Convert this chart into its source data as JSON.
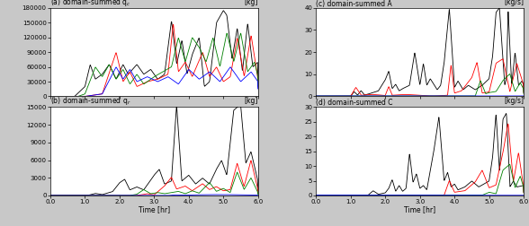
{
  "title_a": "(a) domain-summed q$_c$",
  "title_b": "(b) domain-summed q$_r$",
  "title_c": "(c) domain-summed A",
  "title_d": "(d) domain-summed C",
  "unit_kg": "[kg]",
  "unit_kgs": "[kg/s]",
  "xlabel": "Time [hr]",
  "xlim": [
    0.0,
    6.0
  ],
  "xticks": [
    0.0,
    1.0,
    2.0,
    3.0,
    4.0,
    5.0,
    6.0
  ],
  "xticklabels": [
    "0.0",
    "1.0",
    "2.0",
    "3.0",
    "4.0",
    "5.0",
    "6.0"
  ],
  "ylim_a": [
    0,
    180000
  ],
  "yticks_a": [
    0,
    30000,
    60000,
    90000,
    120000,
    150000,
    180000
  ],
  "ytick_labels_a": [
    "0",
    "30000",
    "60000",
    "90000",
    "120000",
    "150000",
    "180000"
  ],
  "ylim_b": [
    0,
    15000
  ],
  "yticks_b": [
    0,
    3000,
    6000,
    9000,
    12000,
    15000
  ],
  "ytick_labels_b": [
    "0",
    "3000",
    "6000",
    "9000",
    "12000",
    "15000"
  ],
  "ylim_c": [
    0,
    40
  ],
  "yticks_c": [
    0,
    10,
    20,
    30,
    40
  ],
  "ylim_d": [
    0,
    30
  ],
  "yticks_d": [
    0,
    5,
    10,
    15,
    20,
    25,
    30
  ],
  "colors": [
    "black",
    "red",
    "green",
    "blue"
  ],
  "linewidth": 0.6,
  "bg_color": "#ffffff",
  "fig_color": "#c8c8c8"
}
